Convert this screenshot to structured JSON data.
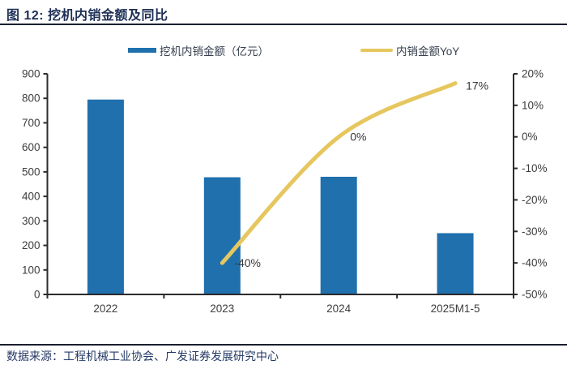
{
  "header": {
    "title": "图 12: 挖机内销金额及同比"
  },
  "footer": {
    "source": "数据来源：工程机械工业协会、广发证券发展研究中心"
  },
  "colors": {
    "bar": "#2070AE",
    "line": "#E6C75F",
    "axis": "#2b2b2b",
    "tick_text": "#3d3d3d",
    "title_navy": "#1e2f55"
  },
  "chart_data": {
    "type": "combo-bar-line",
    "categories": [
      "2022",
      "2023",
      "2024",
      "2025M1-5"
    ],
    "series": [
      {
        "name": "挖机内销金额（亿元）",
        "type": "bar",
        "axis": "left",
        "color": "#2070AE",
        "values": [
          795,
          478,
          480,
          250
        ]
      },
      {
        "name": "内销金额YoY",
        "type": "line",
        "axis": "right",
        "color": "#E6C75F",
        "values": [
          null,
          -40,
          0,
          17
        ],
        "point_labels": [
          "",
          "-40%",
          "0%",
          "17%"
        ]
      }
    ],
    "left_axis": {
      "min": 0,
      "max": 900,
      "step": 100,
      "tick_labels": [
        "900",
        "800",
        "700",
        "600",
        "500",
        "400",
        "300",
        "200",
        "100",
        "0"
      ]
    },
    "right_axis": {
      "min": -50,
      "max": 20,
      "step": 10,
      "tick_labels": [
        "20%",
        "10%",
        "0%",
        "-10%",
        "-20%",
        "-30%",
        "-40%",
        "-50%"
      ]
    },
    "x_axis": {
      "tick_labels": [
        "2022",
        "2023",
        "2024",
        "2025M1-5"
      ]
    },
    "grid": false,
    "legend_position": "top"
  }
}
